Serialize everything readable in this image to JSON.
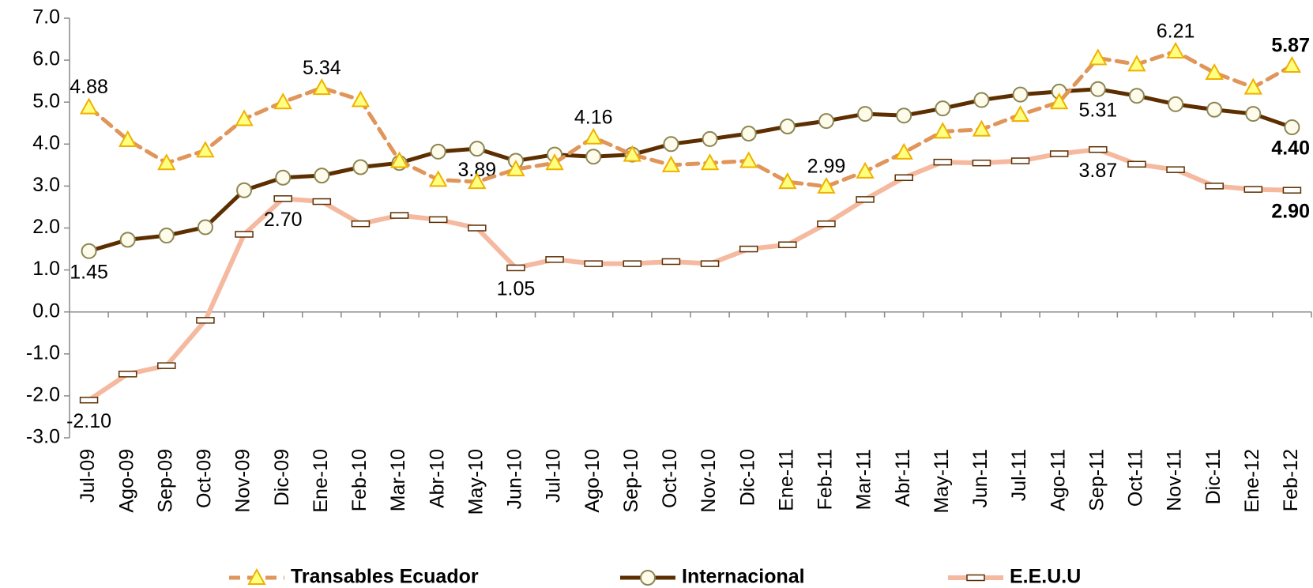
{
  "chart_data": {
    "type": "line",
    "categories": [
      "Jul-09",
      "Ago-09",
      "Sep-09",
      "Oct-09",
      "Nov-09",
      "Dic-09",
      "Ene-10",
      "Feb-10",
      "Mar-10",
      "Abr-10",
      "May-10",
      "Jun-10",
      "Jul-10",
      "Ago-10",
      "Sep-10",
      "Oct-10",
      "Nov-10",
      "Dic-10",
      "Ene-11",
      "Feb-11",
      "Mar-11",
      "Abr-11",
      "May-11",
      "Jun-11",
      "Jul-11",
      "Ago-11",
      "Sep-11",
      "Oct-11",
      "Nov-11",
      "Dic-11",
      "Ene-12",
      "Feb-12"
    ],
    "series": [
      {
        "name": "Transables Ecuador",
        "color": "#e0955a",
        "values": [
          4.88,
          4.1,
          3.55,
          3.85,
          4.6,
          5.0,
          5.34,
          5.05,
          3.6,
          3.15,
          3.1,
          3.4,
          3.55,
          4.16,
          3.75,
          3.5,
          3.55,
          3.6,
          3.1,
          2.99,
          3.35,
          3.8,
          4.3,
          4.35,
          4.7,
          5.0,
          6.05,
          5.9,
          6.21,
          5.7,
          5.35,
          5.87
        ],
        "value_labels": [
          "4.88",
          null,
          null,
          null,
          null,
          null,
          "5.34",
          null,
          null,
          null,
          null,
          null,
          null,
          "4.16",
          null,
          null,
          null,
          null,
          null,
          "2.99",
          null,
          null,
          null,
          null,
          null,
          null,
          null,
          null,
          "6.21",
          null,
          null,
          "5.87"
        ]
      },
      {
        "name": "Internacional",
        "color": "#5c2e00",
        "values": [
          1.45,
          1.72,
          1.82,
          2.02,
          2.9,
          3.2,
          3.25,
          3.45,
          3.55,
          3.82,
          3.89,
          3.6,
          3.75,
          3.7,
          3.75,
          4.0,
          4.12,
          4.25,
          4.42,
          4.55,
          4.72,
          4.68,
          4.85,
          5.05,
          5.18,
          5.25,
          5.31,
          5.15,
          4.95,
          4.82,
          4.72,
          4.4
        ],
        "value_labels": [
          "1.45",
          null,
          null,
          null,
          null,
          null,
          null,
          null,
          null,
          null,
          "3.89",
          null,
          null,
          null,
          null,
          null,
          null,
          null,
          null,
          null,
          null,
          null,
          null,
          null,
          null,
          null,
          "5.31",
          null,
          null,
          null,
          null,
          "4.40"
        ]
      },
      {
        "name": "E.E.U.U",
        "color": "#f5b9a0",
        "values": [
          -2.1,
          -1.48,
          -1.28,
          -0.2,
          1.85,
          2.7,
          2.63,
          2.1,
          2.3,
          2.2,
          2.0,
          1.05,
          1.25,
          1.15,
          1.15,
          1.2,
          1.15,
          1.5,
          1.6,
          2.1,
          2.68,
          3.2,
          3.57,
          3.55,
          3.6,
          3.77,
          3.87,
          3.52,
          3.39,
          3.0,
          2.92,
          2.9
        ],
        "value_labels": [
          "-2.10",
          null,
          null,
          null,
          null,
          "2.70",
          null,
          null,
          null,
          null,
          null,
          "1.05",
          null,
          null,
          null,
          null,
          null,
          null,
          null,
          null,
          null,
          null,
          null,
          null,
          null,
          null,
          "3.87",
          null,
          null,
          null,
          null,
          "2.90"
        ]
      }
    ],
    "ylim": [
      -3,
      7
    ],
    "yticks": [
      {
        "value": -3,
        "label": "-3.0"
      },
      {
        "value": -2,
        "label": "-2.0"
      },
      {
        "value": -1,
        "label": "-1.0"
      },
      {
        "value": 0,
        "label": "0.0"
      },
      {
        "value": 1,
        "label": "1.0"
      },
      {
        "value": 2,
        "label": "2.0"
      },
      {
        "value": 3,
        "label": "3.0"
      },
      {
        "value": 4,
        "label": "4.0"
      },
      {
        "value": 5,
        "label": "5.0"
      },
      {
        "value": 6,
        "label": "6.0"
      },
      {
        "value": 7,
        "label": "7.0"
      }
    ],
    "grid": false,
    "legend": "bottom"
  }
}
